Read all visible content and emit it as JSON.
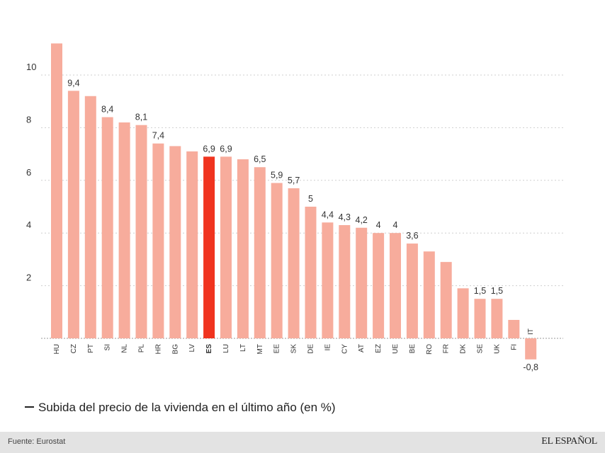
{
  "chart_data": {
    "type": "bar",
    "title": "Subida del precio de la vivienda en el último año (en %)",
    "xlabel": "",
    "ylabel": "",
    "ylim": [
      -0.8,
      11.4
    ],
    "yticks": [
      2,
      4,
      6,
      8,
      10
    ],
    "highlight": "ES",
    "grid": true,
    "categories": [
      "HU",
      "CZ",
      "PT",
      "SI",
      "NL",
      "PL",
      "HR",
      "BG",
      "LV",
      "ES",
      "LU",
      "LT",
      "MT",
      "EE",
      "SK",
      "DE",
      "IE",
      "CY",
      "AT",
      "EZ",
      "UE",
      "BE",
      "RO",
      "FR",
      "DK",
      "SE",
      "UK",
      "FI",
      "IT"
    ],
    "values": [
      11.2,
      9.4,
      9.2,
      8.4,
      8.2,
      8.1,
      7.4,
      7.3,
      7.1,
      6.9,
      6.9,
      6.8,
      6.5,
      5.9,
      5.7,
      5.0,
      4.4,
      4.3,
      4.2,
      4.0,
      4.0,
      3.6,
      3.3,
      2.9,
      1.9,
      1.5,
      1.5,
      0.7,
      -0.8
    ],
    "labels": [
      "",
      "9,4",
      "",
      "8,4",
      "",
      "8,1",
      "7,4",
      "",
      "",
      "6,9",
      "6,9",
      "",
      "6,5",
      "5,9",
      "5,7",
      "5",
      "",
      "4,3",
      "4,2",
      "4",
      "4",
      "3,6",
      "",
      "",
      "",
      "1,5",
      "1,5",
      "",
      "-0,8"
    ]
  },
  "colors": {
    "bar": "#f7ac9c",
    "highlight": "#f0341f",
    "grid": "#cfcfcf",
    "axis": "#9a9a9a"
  },
  "data_label_44": "4,4",
  "legend": {
    "text": "Subida del precio de la vivienda en el último año (en %)"
  },
  "footer": {
    "source": "Fuente: Eurostat",
    "brand": "EL ESPAÑOL"
  }
}
